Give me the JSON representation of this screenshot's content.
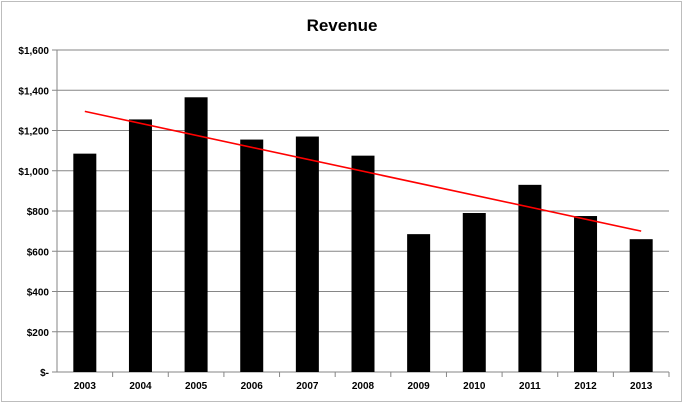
{
  "chart_data": {
    "type": "bar",
    "title": "Revenue",
    "xlabel": "",
    "ylabel": "",
    "categories": [
      "2003",
      "2004",
      "2005",
      "2006",
      "2007",
      "2008",
      "2009",
      "2010",
      "2011",
      "2012",
      "2013"
    ],
    "values": [
      1085,
      1255,
      1365,
      1155,
      1170,
      1075,
      685,
      790,
      930,
      775,
      660
    ],
    "ylim": [
      0,
      1600
    ],
    "yticks": [
      0,
      200,
      400,
      600,
      800,
      1000,
      1200,
      1400,
      1600
    ],
    "ytick_labels": [
      "$-",
      "$200",
      "$400",
      "$600",
      "$800",
      "$1,000",
      "$1,200",
      "$1,400",
      "$1,600"
    ],
    "grid": true,
    "bar_color": "#000000",
    "trendline": {
      "type": "linear",
      "color": "#ff0000",
      "start": 1295,
      "end": 700
    }
  }
}
